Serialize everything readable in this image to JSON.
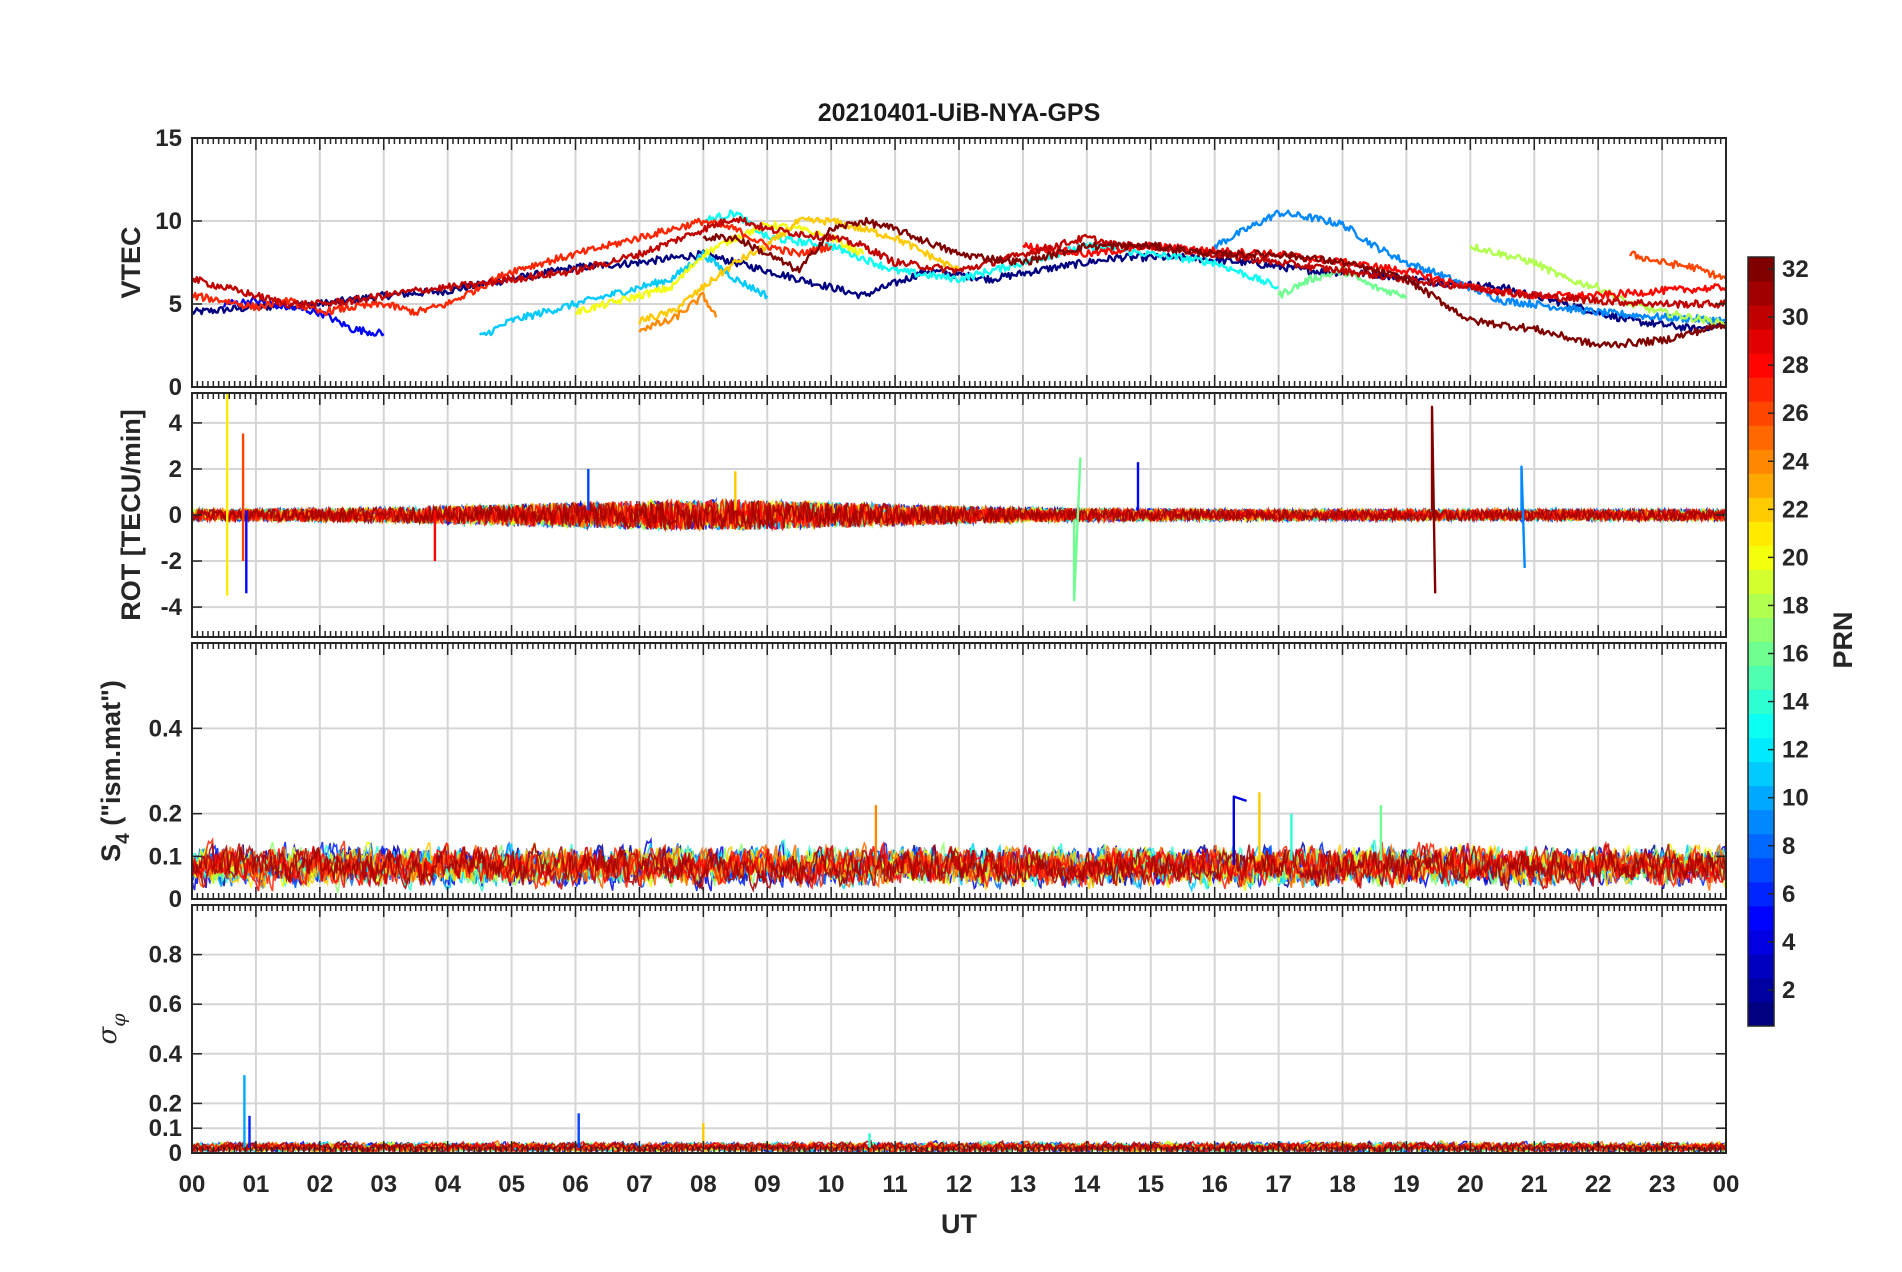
{
  "figure": {
    "title": "20210401-UiB-NYA-GPS",
    "xlabel": "UT",
    "x_ticks": [
      "00",
      "01",
      "02",
      "03",
      "04",
      "05",
      "06",
      "07",
      "08",
      "09",
      "10",
      "11",
      "12",
      "13",
      "14",
      "15",
      "16",
      "17",
      "18",
      "19",
      "20",
      "21",
      "22",
      "23",
      "00"
    ]
  },
  "colorbar": {
    "label": "PRN",
    "colormap": "jet",
    "range": [
      1,
      32
    ],
    "ticks": [
      "2",
      "4",
      "6",
      "8",
      "10",
      "12",
      "14",
      "16",
      "18",
      "20",
      "22",
      "24",
      "26",
      "28",
      "30",
      "32"
    ]
  },
  "chart_data": [
    {
      "type": "line",
      "panel": "VTEC",
      "ylabel": "VTEC",
      "xlim": [
        0,
        24
      ],
      "ylim": [
        0,
        15
      ],
      "y_ticks": [
        "0",
        "5",
        "10",
        "15"
      ],
      "grid": true,
      "series": [
        {
          "prn": 1,
          "x": [
            0,
            1,
            2,
            3,
            4,
            5,
            6,
            7,
            8,
            9,
            10.5,
            11.5,
            12.5,
            13.5,
            14.5,
            15.5,
            16.5,
            17.5,
            18.5,
            19.5,
            20.5,
            21.5,
            22.5,
            23.5,
            24
          ],
          "y": [
            4.5,
            4.8,
            5.0,
            5.5,
            5.8,
            6.5,
            7.2,
            7.5,
            8.0,
            7.0,
            5.5,
            7.0,
            6.5,
            7.2,
            7.8,
            7.8,
            7.5,
            7.0,
            6.8,
            6.3,
            6.0,
            5.0,
            4.0,
            3.5,
            3.8
          ]
        },
        {
          "prn": 5,
          "x": [
            0.5,
            1,
            1.5,
            2,
            2.5,
            3
          ],
          "y": [
            5.0,
            5.2,
            4.8,
            4.5,
            3.5,
            3.2
          ]
        },
        {
          "prn": 9,
          "x": [
            16,
            16.5,
            17,
            17.5,
            18,
            18.5,
            19,
            19.5,
            20,
            20.5,
            21,
            22,
            23,
            24
          ],
          "y": [
            8.5,
            9.5,
            10.5,
            10.2,
            9.8,
            8.5,
            7.5,
            6.8,
            6.0,
            5.2,
            5.0,
            4.5,
            4.2,
            4.0
          ]
        },
        {
          "prn": 11,
          "x": [
            4.5,
            5,
            5.5,
            6,
            6.5,
            7,
            7.5,
            8,
            8.5,
            9
          ],
          "y": [
            3.0,
            4.0,
            4.5,
            5.0,
            5.5,
            6.0,
            6.5,
            8.0,
            6.5,
            5.5
          ]
        },
        {
          "prn": 13,
          "x": [
            8,
            8.5,
            9,
            10,
            11,
            12,
            13,
            14,
            15,
            16,
            17
          ],
          "y": [
            10.0,
            10.5,
            9.0,
            8.5,
            7.0,
            6.5,
            7.5,
            8.5,
            8.0,
            7.5,
            6.0
          ]
        },
        {
          "prn": 16,
          "x": [
            17,
            17.5,
            18,
            18.5,
            19
          ],
          "y": [
            5.5,
            6.5,
            7.0,
            6.0,
            5.5
          ]
        },
        {
          "prn": 18,
          "x": [
            20,
            20.5,
            21,
            21.5,
            22,
            22.5,
            23,
            24
          ],
          "y": [
            8.5,
            8.0,
            7.5,
            6.5,
            6.0,
            5.0,
            4.5,
            3.8
          ]
        },
        {
          "prn": 20,
          "x": [
            6,
            6.5,
            7,
            7.5,
            8,
            8.5,
            9,
            9.5,
            10,
            10.5
          ],
          "y": [
            4.5,
            5.0,
            5.5,
            6.0,
            8.0,
            9.0,
            9.8,
            9.5,
            9.0,
            8.0
          ]
        },
        {
          "prn": 22,
          "x": [
            7,
            7.5,
            8,
            8.5,
            9,
            9.5,
            10,
            10.5,
            11,
            11.5,
            12
          ],
          "y": [
            4.0,
            4.5,
            6.0,
            7.5,
            8.5,
            10.0,
            10.0,
            9.5,
            9.0,
            8.0,
            7.0
          ]
        },
        {
          "prn": 24,
          "x": [
            7,
            7.5,
            8,
            8.2
          ],
          "y": [
            3.5,
            4.0,
            5.5,
            4.2
          ]
        },
        {
          "prn": 26,
          "x": [
            22.5,
            23,
            23.5,
            24
          ],
          "y": [
            8.0,
            7.5,
            7.2,
            6.5
          ]
        },
        {
          "prn": 27,
          "x": [
            0,
            0.5,
            1,
            1.5,
            2,
            2.5,
            3,
            3.5,
            4,
            4.5,
            5,
            5.5,
            6,
            6.5,
            7,
            7.5,
            8,
            8.5,
            9,
            9.5,
            10
          ],
          "y": [
            5.5,
            5.2,
            4.8,
            5.2,
            4.5,
            4.8,
            5.0,
            4.5,
            5.0,
            6.0,
            7.0,
            7.5,
            8.0,
            8.5,
            9.0,
            9.5,
            10.0,
            9.5,
            8.5,
            8.0,
            8.5
          ]
        },
        {
          "prn": 28,
          "x": [
            13,
            14,
            15,
            16,
            17,
            18,
            19,
            20,
            21,
            22,
            23,
            24
          ],
          "y": [
            8.5,
            8.0,
            8.5,
            8.2,
            8.0,
            7.5,
            7.0,
            6.0,
            5.5,
            5.5,
            5.8,
            6.0
          ]
        },
        {
          "prn": 30,
          "x": [
            0,
            0.5,
            1,
            1.5,
            2,
            2.5,
            3,
            3.5,
            4,
            4.5,
            5,
            6,
            7,
            8,
            8.5,
            9,
            10,
            10.5,
            11,
            12,
            12.5,
            13,
            13.5,
            14,
            14.5,
            15,
            16,
            17,
            18,
            19,
            20,
            21,
            22,
            23,
            24
          ],
          "y": [
            6.5,
            6.0,
            5.5,
            5.0,
            5.0,
            5.2,
            5.5,
            5.8,
            6.0,
            6.2,
            6.5,
            7.0,
            8.0,
            9.5,
            10.2,
            9.5,
            9.0,
            8.5,
            7.5,
            7.0,
            7.5,
            8.0,
            8.5,
            9.0,
            8.5,
            8.5,
            8.0,
            7.5,
            7.0,
            6.5,
            6.0,
            5.5,
            5.2,
            5.0,
            5.0
          ]
        },
        {
          "prn": 32,
          "x": [
            8,
            8.5,
            9,
            9.5,
            10,
            10.5,
            11,
            12,
            13,
            14,
            15,
            16,
            17,
            18,
            19,
            20,
            21,
            22,
            23,
            24
          ],
          "y": [
            9.0,
            9.0,
            8.0,
            7.0,
            9.5,
            10.0,
            9.5,
            8.0,
            7.5,
            8.5,
            8.5,
            8.0,
            8.0,
            7.5,
            6.5,
            4.0,
            3.5,
            2.5,
            2.8,
            3.8
          ]
        }
      ]
    },
    {
      "type": "line",
      "panel": "ROT",
      "ylabel": "ROT [TECU/min]",
      "xlim": [
        0,
        24
      ],
      "ylim": [
        -5.3,
        5.3
      ],
      "y_ticks": [
        "-4",
        "-2",
        "0",
        "2",
        "4"
      ],
      "grid": true,
      "noise_band": {
        "hours": [
          0,
          24
        ],
        "amplitude": 0.5
      },
      "series": [
        {
          "prn": 21,
          "x": [
            0.55,
            0.55,
            0.55
          ],
          "y": [
            0.3,
            5.3,
            -3.5
          ]
        },
        {
          "prn": 26,
          "x": [
            0.8,
            0.8,
            0.8
          ],
          "y": [
            0.4,
            3.5,
            -2.0
          ]
        },
        {
          "prn": 5,
          "x": [
            0.85,
            0.85
          ],
          "y": [
            0.2,
            -3.4
          ]
        },
        {
          "prn": 28,
          "x": [
            3.8,
            3.8
          ],
          "y": [
            0.2,
            -2.0
          ]
        },
        {
          "prn": 7,
          "x": [
            6.2,
            6.2
          ],
          "y": [
            0.2,
            2.0
          ]
        },
        {
          "prn": 22,
          "x": [
            8.5,
            8.5
          ],
          "y": [
            0.2,
            1.9
          ]
        },
        {
          "prn": 16,
          "x": [
            13.8,
            13.8,
            13.9
          ],
          "y": [
            -0.2,
            -3.7,
            2.5
          ]
        },
        {
          "prn": 5,
          "x": [
            14.8,
            14.8
          ],
          "y": [
            0.2,
            2.3
          ]
        },
        {
          "prn": 32,
          "x": [
            19.4,
            19.4,
            19.45
          ],
          "y": [
            0.2,
            4.7,
            -3.4
          ]
        },
        {
          "prn": 9,
          "x": [
            20.8,
            20.8,
            20.85
          ],
          "y": [
            0.2,
            2.1,
            -2.3
          ]
        }
      ]
    },
    {
      "type": "line",
      "panel": "S4",
      "ylabel": "S4 (\"ism.mat\")",
      "xlim": [
        0,
        24
      ],
      "ylim": [
        0,
        0.6
      ],
      "y_ticks": [
        "0",
        "0.1",
        "0.2",
        "0.4"
      ],
      "grid": true,
      "noise_band": {
        "hours": [
          0,
          24
        ],
        "base": 0.07,
        "amplitude": 0.06
      },
      "series": [
        {
          "prn": 24,
          "x": [
            10.7,
            10.7
          ],
          "y": [
            0.08,
            0.22
          ]
        },
        {
          "prn": 4,
          "x": [
            16.3,
            16.3,
            16.5
          ],
          "y": [
            0.08,
            0.24,
            0.23
          ]
        },
        {
          "prn": 22,
          "x": [
            16.7,
            16.7
          ],
          "y": [
            0.09,
            0.25
          ]
        },
        {
          "prn": 14,
          "x": [
            17.2,
            17.2
          ],
          "y": [
            0.09,
            0.2
          ]
        },
        {
          "prn": 16,
          "x": [
            18.6,
            18.6
          ],
          "y": [
            0.09,
            0.22
          ]
        }
      ]
    },
    {
      "type": "line",
      "panel": "sigma_phi",
      "ylabel": "σφ",
      "xlim": [
        0,
        24
      ],
      "ylim": [
        0,
        1.0
      ],
      "y_ticks": [
        "0",
        "0.1",
        "0.2",
        "0.4",
        "0.6",
        "0.8"
      ],
      "grid": true,
      "noise_band": {
        "hours": [
          0,
          24
        ],
        "base": 0.02,
        "amplitude": 0.025
      },
      "series": [
        {
          "prn": 10,
          "x": [
            0.82,
            0.82,
            0.82
          ],
          "y": [
            0.03,
            0.31,
            0.02
          ]
        },
        {
          "prn": 6,
          "x": [
            0.9,
            0.9
          ],
          "y": [
            0.02,
            0.15
          ]
        },
        {
          "prn": 7,
          "x": [
            6.05,
            6.05
          ],
          "y": [
            0.02,
            0.16
          ]
        },
        {
          "prn": 22,
          "x": [
            8.0,
            8.0
          ],
          "y": [
            0.03,
            0.12
          ]
        },
        {
          "prn": 14,
          "x": [
            10.6,
            10.6
          ],
          "y": [
            0.02,
            0.08
          ]
        }
      ]
    }
  ]
}
